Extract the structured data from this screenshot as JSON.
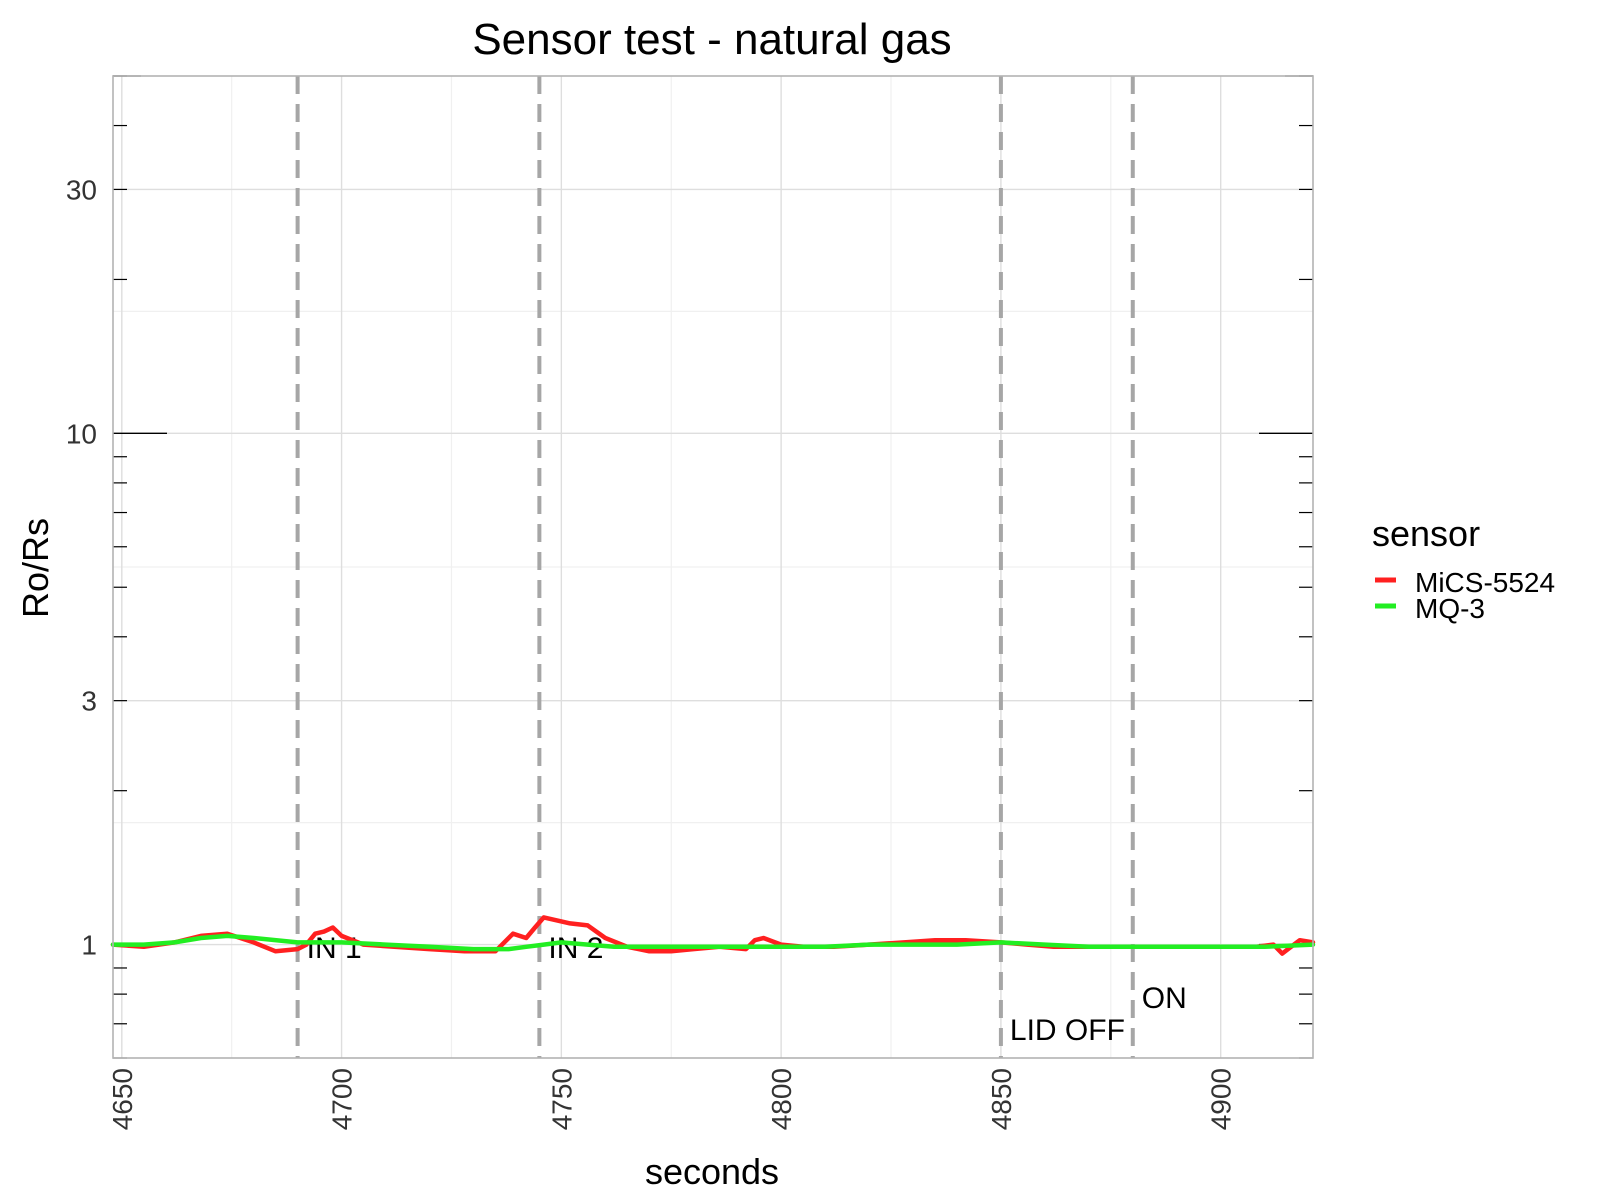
{
  "chart_data": {
    "type": "line",
    "title": "Sensor test - natural gas",
    "xlabel": "seconds",
    "ylabel": "Ro/Rs",
    "y_scale": "log",
    "xlim": [
      4648,
      4921
    ],
    "ylim": [
      0.6,
      50
    ],
    "x_ticks": [
      4650,
      4700,
      4750,
      4800,
      4850,
      4900
    ],
    "y_ticks": [
      1,
      3,
      10,
      30
    ],
    "grid": true,
    "legend": {
      "title": "sensor",
      "placement": "right",
      "entries": [
        {
          "name": "MiCS-5524",
          "color": "#ff2020"
        },
        {
          "name": "MQ-3",
          "color": "#22ee22"
        }
      ]
    },
    "vlines": [
      {
        "x": 4690,
        "label": "IN 1"
      },
      {
        "x": 4745,
        "label": "IN 2"
      },
      {
        "x": 4850,
        "label": "LID OFF"
      },
      {
        "x": 4880,
        "label": "ON"
      }
    ],
    "series": [
      {
        "name": "MiCS-5524",
        "color": "#ff2020",
        "x": [
          4648,
          4655,
          4662,
          4668,
          4674,
          4680,
          4685,
          4690,
          4692,
          4694,
          4696,
          4698,
          4700,
          4705,
          4712,
          4720,
          4728,
          4735,
          4739,
          4742,
          4744,
          4746,
          4748,
          4752,
          4756,
          4760,
          4765,
          4770,
          4775,
          4780,
          4786,
          4792,
          4794,
          4796,
          4800,
          4805,
          4812,
          4820,
          4828,
          4835,
          4842,
          4850,
          4856,
          4862,
          4870,
          4880,
          4890,
          4900,
          4908,
          4912,
          4914,
          4916,
          4918,
          4921
        ],
        "y": [
          1.0,
          0.99,
          1.01,
          1.04,
          1.05,
          1.01,
          0.97,
          0.98,
          1.0,
          1.05,
          1.06,
          1.08,
          1.04,
          1.0,
          0.99,
          0.98,
          0.97,
          0.97,
          1.05,
          1.03,
          1.08,
          1.13,
          1.12,
          1.1,
          1.09,
          1.03,
          0.99,
          0.97,
          0.97,
          0.98,
          0.99,
          0.98,
          1.02,
          1.03,
          1.0,
          0.99,
          0.99,
          1.0,
          1.01,
          1.02,
          1.02,
          1.01,
          1.0,
          0.99,
          0.99,
          0.99,
          0.99,
          0.99,
          0.99,
          1.0,
          0.96,
          0.99,
          1.02,
          1.01
        ]
      },
      {
        "name": "MQ-3",
        "color": "#22ee22",
        "x": [
          4648,
          4655,
          4662,
          4668,
          4674,
          4680,
          4690,
          4700,
          4710,
          4720,
          4730,
          4738,
          4742,
          4746,
          4750,
          4756,
          4762,
          4770,
          4780,
          4790,
          4800,
          4810,
          4820,
          4830,
          4840,
          4850,
          4860,
          4870,
          4880,
          4890,
          4900,
          4910,
          4921
        ],
        "y": [
          1.0,
          1.0,
          1.01,
          1.03,
          1.04,
          1.03,
          1.01,
          1.01,
          1.0,
          0.99,
          0.98,
          0.98,
          0.99,
          1.0,
          1.01,
          1.0,
          0.99,
          0.99,
          0.99,
          0.99,
          0.99,
          0.99,
          1.0,
          1.0,
          1.0,
          1.01,
          1.0,
          0.99,
          0.99,
          0.99,
          0.99,
          0.99,
          1.0
        ]
      }
    ]
  }
}
